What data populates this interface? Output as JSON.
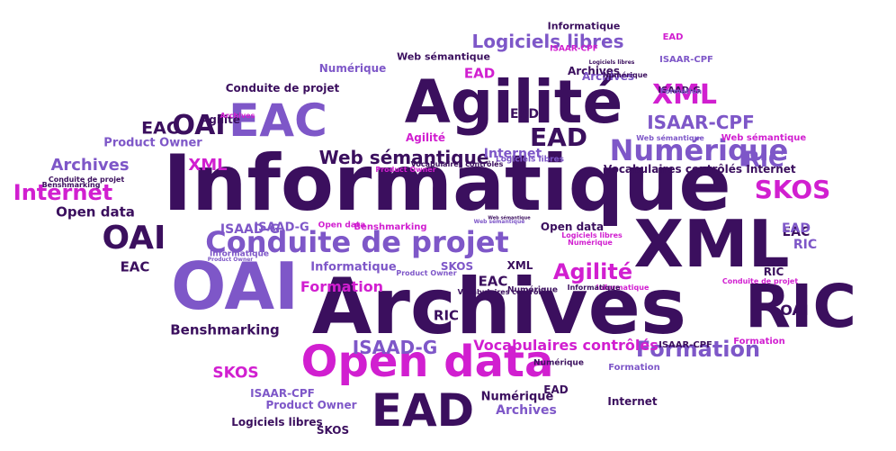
{
  "colors": {
    "dark": "#3b0f5e",
    "lavender": "#7e57c8",
    "magenta": "#d11fd0"
  },
  "words": [
    {
      "text": "Informatique",
      "c": 0
    },
    {
      "text": "Archives",
      "c": 0
    },
    {
      "text": "Agilité",
      "c": 0
    },
    {
      "text": "XML",
      "c": 0
    },
    {
      "text": "OAI",
      "c": 1
    },
    {
      "text": "EAC",
      "c": 1
    },
    {
      "text": "Open data",
      "c": 2
    },
    {
      "text": "RIC",
      "c": 0
    },
    {
      "text": "EAD",
      "c": 0
    },
    {
      "text": "Conduite de projet",
      "c": 1
    },
    {
      "text": "Numérique",
      "c": 1
    },
    {
      "text": "XML",
      "c": 2
    },
    {
      "text": "SKOS",
      "c": 2
    },
    {
      "text": "Internet",
      "c": 2
    },
    {
      "text": "RIC",
      "c": 1
    },
    {
      "text": "Formation",
      "c": 1
    },
    {
      "text": "OAI",
      "c": 0
    },
    {
      "text": "OAI",
      "c": 0
    },
    {
      "text": "EAD",
      "c": 0
    },
    {
      "text": "EAC",
      "c": 0
    },
    {
      "text": "Web sémantique",
      "c": 0
    },
    {
      "text": "Logiciels libres",
      "c": 1
    },
    {
      "text": "Agilité",
      "c": 2
    },
    {
      "text": "ISAAR-CPF",
      "c": 1
    },
    {
      "text": "ISAAD-G",
      "c": 1
    },
    {
      "text": "Archives",
      "c": 1
    },
    {
      "text": "XML",
      "c": 2
    },
    {
      "text": "Internet",
      "c": 0
    },
    {
      "text": "Open data",
      "c": 0
    },
    {
      "text": "EAC",
      "c": 0
    },
    {
      "text": "Benshmarking",
      "c": 0
    },
    {
      "text": "ISAAD-G",
      "c": 1
    },
    {
      "text": "SKOS",
      "c": 2
    },
    {
      "text": "Vocabulaires contrôlés",
      "c": 2
    },
    {
      "text": "Formation",
      "c": 2
    },
    {
      "text": "ISAAR-CPF",
      "c": 1
    },
    {
      "text": "Product Owner",
      "c": 1
    },
    {
      "text": "Numérique",
      "c": 0
    },
    {
      "text": "Archives",
      "c": 1
    },
    {
      "text": "Logiciels libres",
      "c": 0
    },
    {
      "text": "SKOS",
      "c": 0
    },
    {
      "text": "EAD",
      "c": 2
    },
    {
      "text": "Agilité",
      "c": 0
    },
    {
      "text": "Conduite de projet",
      "c": 0
    },
    {
      "text": "Numérique",
      "c": 1
    },
    {
      "text": "EAD",
      "c": 0
    },
    {
      "text": "EAC",
      "c": 0
    },
    {
      "text": "Agilité",
      "c": 2
    },
    {
      "text": "Product Owner",
      "c": 1
    },
    {
      "text": "Open data",
      "c": 0
    },
    {
      "text": "ISAAD-G",
      "c": 1
    },
    {
      "text": "Internet",
      "c": 0
    },
    {
      "text": "RIC",
      "c": 0
    },
    {
      "text": "ISAAR-CPF",
      "c": 0
    },
    {
      "text": "SKOS",
      "c": 1
    },
    {
      "text": "ISAAD-G",
      "c": 0
    },
    {
      "text": "EAD",
      "c": 1
    },
    {
      "text": "RIC",
      "c": 1
    },
    {
      "text": "OAI",
      "c": 0
    },
    {
      "text": "Formation",
      "c": 2
    },
    {
      "text": "EAC",
      "c": 0
    },
    {
      "text": "RIC",
      "c": 0
    },
    {
      "text": "XML",
      "c": 0
    },
    {
      "text": "Informatique",
      "c": 1
    },
    {
      "text": "Benshmarking",
      "c": 2
    },
    {
      "text": "Vocabulaires contrôlés",
      "c": 0
    },
    {
      "text": "Numérique",
      "c": 0
    },
    {
      "text": "Internet",
      "c": 1
    },
    {
      "text": "Informatique",
      "c": 0
    },
    {
      "text": "Formation",
      "c": 1
    },
    {
      "text": "Web sémantique",
      "c": 2
    },
    {
      "text": "Web sémantique",
      "c": 1
    },
    {
      "text": "Logiciels libres",
      "c": 1
    },
    {
      "text": "Open data",
      "c": 2
    },
    {
      "text": "Product Owner",
      "c": 2
    },
    {
      "text": "Benshmarking",
      "c": 0
    },
    {
      "text": "Vocabulaires contrôlés",
      "c": 0
    },
    {
      "text": "Informatique",
      "c": 1
    },
    {
      "text": "Numérique",
      "c": 0
    },
    {
      "text": "Product Owner",
      "c": 1
    },
    {
      "text": "Web sémantique",
      "c": 0
    },
    {
      "text": "Logiciels libres",
      "c": 2
    },
    {
      "text": "Conduite de projet",
      "c": 0
    },
    {
      "text": "Vocabulaires contrôlés",
      "c": 0
    },
    {
      "text": "Archives",
      "c": 2
    },
    {
      "text": "ISAAR-CPF",
      "c": 2
    },
    {
      "text": "Conduite de projet",
      "c": 2
    },
    {
      "text": "Informatique",
      "c": 2
    },
    {
      "text": "Numérique",
      "c": 2
    },
    {
      "text": "EAD",
      "c": 2
    },
    {
      "text": "Archives",
      "c": 0
    },
    {
      "text": "ISAAR-CPF",
      "c": 1
    },
    {
      "text": "Web sémantique",
      "c": 1
    },
    {
      "text": "Formation",
      "c": 1
    },
    {
      "text": "Product Owner",
      "c": 1
    },
    {
      "text": "Logiciels libres",
      "c": 0
    },
    {
      "text": "Archives",
      "c": 1
    },
    {
      "text": "Numérique",
      "c": 0
    },
    {
      "text": "EAD",
      "c": 0
    },
    {
      "text": "Informatique",
      "c": 0
    },
    {
      "text": "Web sémantique",
      "c": 0
    }
  ]
}
